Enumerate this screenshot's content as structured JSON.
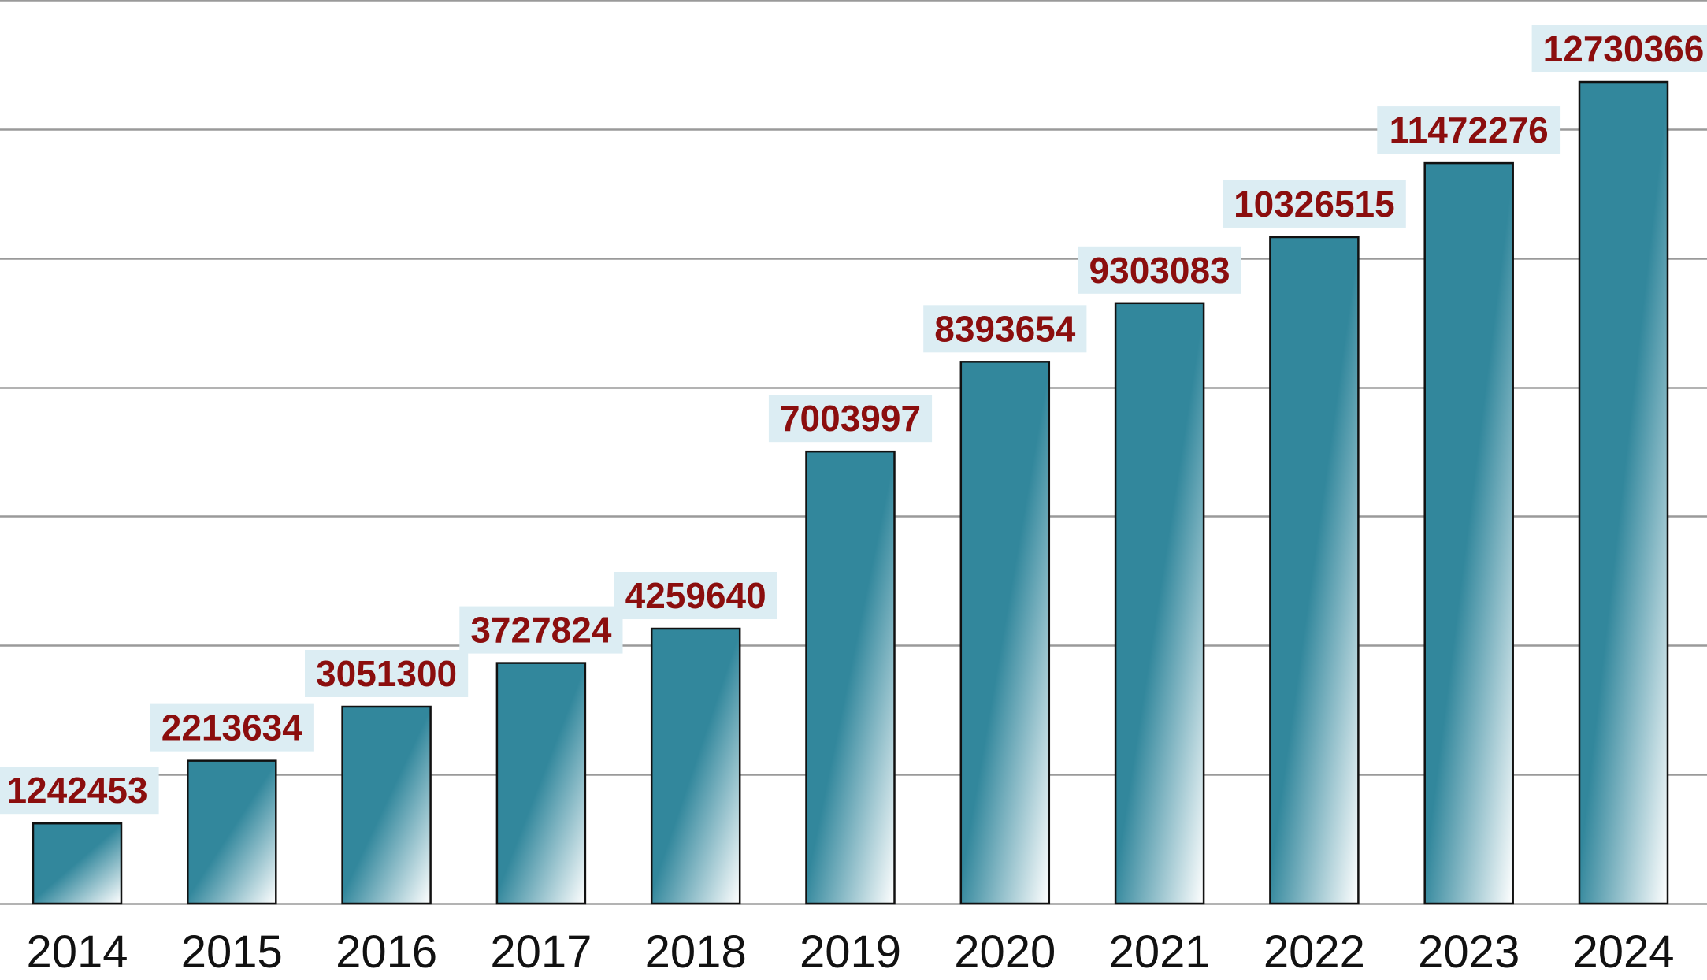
{
  "chart_data": {
    "type": "bar",
    "title": "",
    "xlabel": "",
    "ylabel": "",
    "categories": [
      "2014",
      "2015",
      "2016",
      "2017",
      "2018",
      "2019",
      "2020",
      "2021",
      "2022",
      "2023",
      "2024"
    ],
    "values": [
      1242453,
      2213634,
      3051300,
      3727824,
      4259640,
      7003997,
      8393654,
      9303083,
      10326515,
      11472276,
      12730366
    ],
    "data_labels": [
      "1242453",
      "2213634",
      "3051300",
      "3727824",
      "4259640",
      "7003997",
      "8393654",
      "9303083",
      "10326515",
      "11472276",
      "12730366"
    ],
    "ylim": [
      0,
      14000000
    ],
    "gridlines": [
      0,
      2000000,
      4000000,
      6000000,
      8000000,
      10000000,
      12000000,
      14000000
    ],
    "grid": true,
    "legend": "none",
    "colors": {
      "bar_dark": "#32879c",
      "bar_light": "#ffffff",
      "bar_border": "#111111",
      "label_text": "#8b0e0e",
      "label_bg": "#dcedf3",
      "gridline": "#9a9a9a"
    }
  }
}
